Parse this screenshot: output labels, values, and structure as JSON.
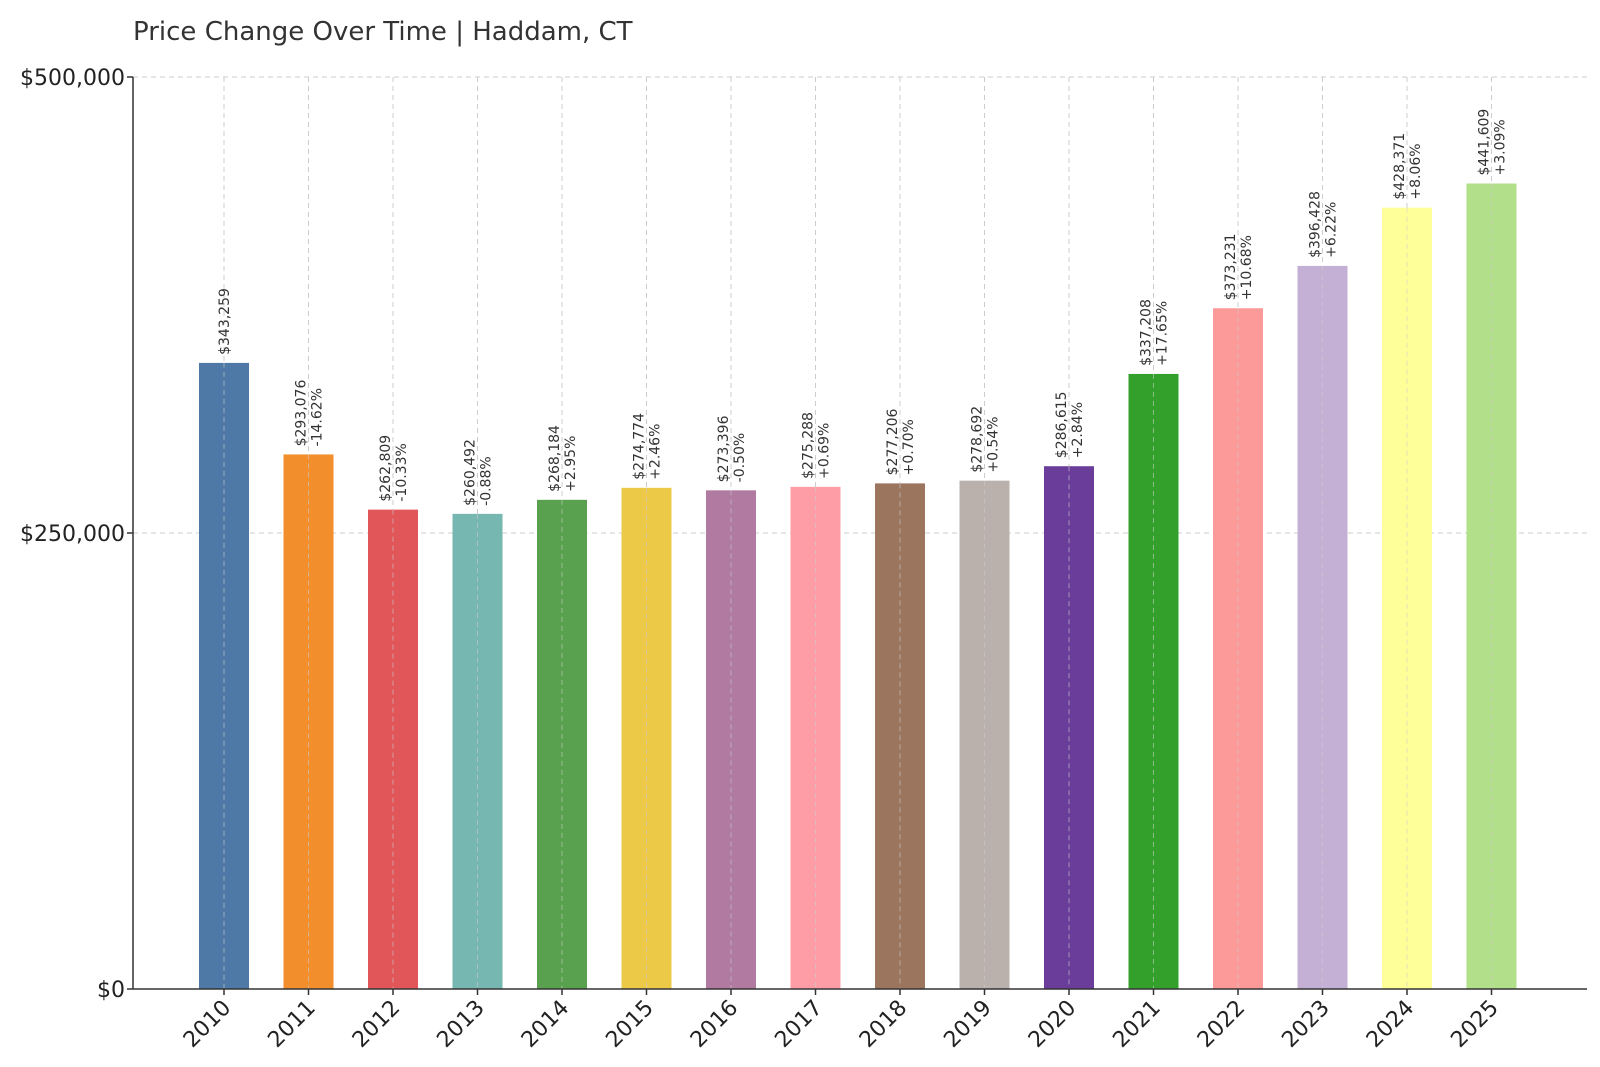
{
  "chart_data": {
    "type": "bar",
    "title": "Price Change Over Time | Haddam, CT",
    "xlabel": "",
    "ylabel": "",
    "ylim": [
      0,
      500000
    ],
    "yticks": [
      {
        "value": 0,
        "label": "$0"
      },
      {
        "value": 250000,
        "label": "$250,000"
      },
      {
        "value": 500000,
        "label": "$500,000"
      }
    ],
    "grid": true,
    "categories": [
      "2010",
      "2011",
      "2012",
      "2013",
      "2014",
      "2015",
      "2016",
      "2017",
      "2018",
      "2019",
      "2020",
      "2021",
      "2022",
      "2023",
      "2024",
      "2025"
    ],
    "values": [
      343259,
      293076,
      262809,
      260492,
      268184,
      274774,
      273396,
      275288,
      277206,
      278692,
      286615,
      337208,
      373231,
      396428,
      428371,
      441609
    ],
    "value_labels": [
      "$343,259",
      "$293,076",
      "$262,809",
      "$260,492",
      "$268,184",
      "$274,774",
      "$273,396",
      "$275,288",
      "$277,206",
      "$278,692",
      "$286,615",
      "$337,208",
      "$373,231",
      "$396,428",
      "$428,371",
      "$441,609"
    ],
    "change_labels": [
      "",
      "-14.62%",
      "-10.33%",
      "-0.88%",
      "+2.95%",
      "+2.46%",
      "-0.50%",
      "+0.69%",
      "+0.70%",
      "+0.54%",
      "+2.84%",
      "+17.65%",
      "+10.68%",
      "+6.22%",
      "+8.06%",
      "+3.09%"
    ],
    "colors": [
      "#4e79a7",
      "#f28e2b",
      "#e15759",
      "#76b7b2",
      "#59a14f",
      "#edc948",
      "#b07aa1",
      "#ff9da7",
      "#9c755f",
      "#bab0ac",
      "#6a3d9a",
      "#33a02c",
      "#fb9a99",
      "#c5b0d5",
      "#ffff99",
      "#b2df8a"
    ]
  }
}
